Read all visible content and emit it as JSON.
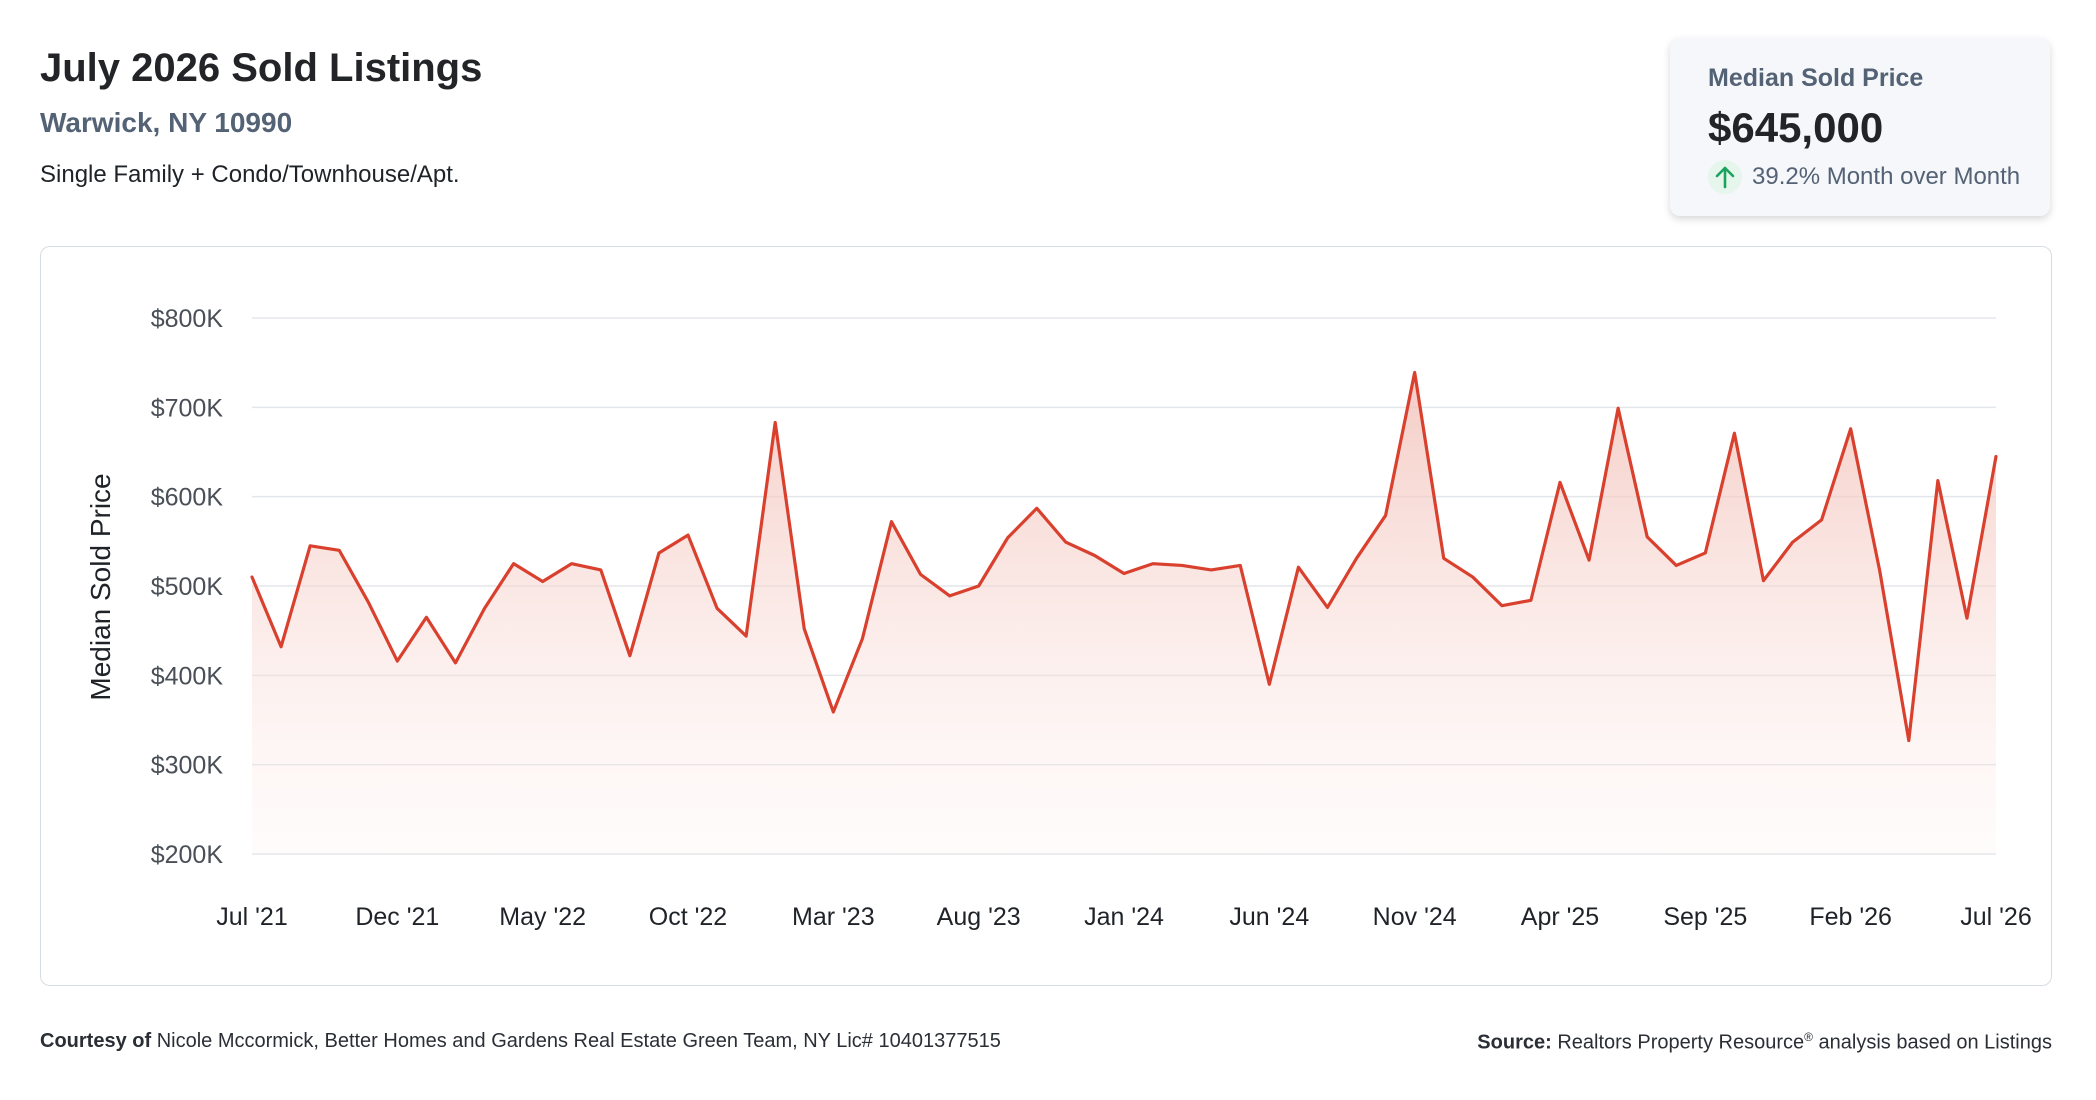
{
  "header": {
    "title": "July 2026 Sold Listings",
    "location": "Warwick, NY 10990",
    "property_types": "Single Family + Condo/Townhouse/Apt."
  },
  "summary_card": {
    "label": "Median Sold Price",
    "value": "$645,000",
    "change": "39.2% Month over Month",
    "direction": "up",
    "icon": "arrow-up-icon",
    "colors": {
      "up": "#1aa35a",
      "background": "#f5f7fa"
    }
  },
  "footer": {
    "courtesy_label": "Courtesy of",
    "courtesy_text": "Nicole Mccormick, Better Homes and Gardens Real Estate Green Team, NY Lic# 10401377515",
    "source_label": "Source:",
    "source_text": "Realtors Property Resource",
    "source_mark": "®",
    "source_suffix": "analysis based on Listings"
  },
  "chart_data": {
    "type": "area",
    "title": "",
    "xlabel": "",
    "ylabel": "Median Sold Price",
    "ylim": [
      200000,
      800000
    ],
    "yticks": [
      200000,
      300000,
      400000,
      500000,
      600000,
      700000,
      800000
    ],
    "ytick_labels": [
      "$200K",
      "$300K",
      "$400K",
      "$500K",
      "$600K",
      "$700K",
      "$800K"
    ],
    "xtick_labels": [
      "Jul '21",
      "Dec '21",
      "May '22",
      "Oct '22",
      "Mar '23",
      "Aug '23",
      "Jan '24",
      "Jun '24",
      "Nov '24",
      "Apr '25",
      "Sep '25",
      "Feb '26",
      "Jul '26"
    ],
    "xtick_every": 5,
    "grid": true,
    "legend": "none",
    "line_color": "#d9412e",
    "fill_color": "#f4c9c2",
    "categories": [
      "Jul '21",
      "Aug '21",
      "Sep '21",
      "Oct '21",
      "Nov '21",
      "Dec '21",
      "Jan '22",
      "Feb '22",
      "Mar '22",
      "Apr '22",
      "May '22",
      "Jun '22",
      "Jul '22",
      "Aug '22",
      "Sep '22",
      "Oct '22",
      "Nov '22",
      "Dec '22",
      "Jan '23",
      "Feb '23",
      "Mar '23",
      "Apr '23",
      "May '23",
      "Jun '23",
      "Jul '23",
      "Aug '23",
      "Sep '23",
      "Oct '23",
      "Nov '23",
      "Dec '23",
      "Jan '24",
      "Feb '24",
      "Mar '24",
      "Apr '24",
      "May '24",
      "Jun '24",
      "Jul '24",
      "Aug '24",
      "Sep '24",
      "Oct '24",
      "Nov '24",
      "Dec '24",
      "Jan '25",
      "Feb '25",
      "Mar '25",
      "Apr '25",
      "May '25",
      "Jun '25",
      "Jul '25",
      "Aug '25",
      "Sep '25",
      "Oct '25",
      "Nov '25",
      "Dec '25",
      "Jan '26",
      "Feb '26",
      "Mar '26",
      "Apr '26",
      "May '26",
      "Jun '26",
      "Jul '26"
    ],
    "series": [
      {
        "values": [
          510000,
          432000,
          545000,
          540000,
          482000,
          416000,
          465000,
          414000,
          475000,
          525000,
          505000,
          525000,
          518000,
          422000,
          537000,
          557000,
          475000,
          444000,
          683000,
          452000,
          359000,
          441000,
          572000,
          513000,
          489000,
          500000,
          554000,
          587000,
          549000,
          534000,
          514000,
          525000,
          523000,
          518000,
          523000,
          390000,
          521000,
          476000,
          531000,
          579000,
          739000,
          531000,
          510000,
          478000,
          484000,
          616000,
          529000,
          699000,
          555000,
          523000,
          537000,
          671000,
          506000,
          549000,
          574000,
          676000,
          517000,
          327000,
          618000,
          464000,
          645000
        ]
      }
    ]
  }
}
